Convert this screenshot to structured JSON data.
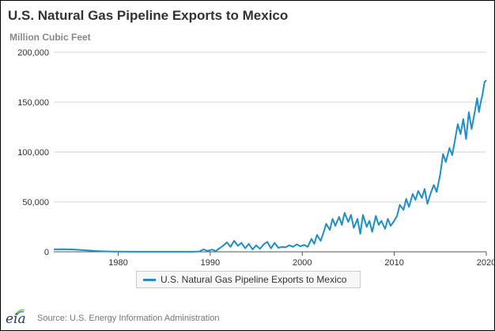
{
  "title": "U.S. Natural Gas Pipeline Exports to Mexico",
  "subtitle": "Million Cubic Feet",
  "source": "Source: U.S. Energy Information Administration",
  "logo_text": "eia",
  "colors": {
    "series": "#1f8fc8",
    "grid": "#d4d4d4",
    "axis": "#555555",
    "text": "#333333"
  },
  "chart_data": {
    "type": "line",
    "title": "U.S. Natural Gas Pipeline Exports to Mexico",
    "subtitle": "Million Cubic Feet",
    "xlabel": "",
    "ylabel": "",
    "xlim": [
      1973,
      2020
    ],
    "ylim": [
      0,
      200000
    ],
    "x_ticks": [
      "1980",
      "1990",
      "2000",
      "2010",
      "2020"
    ],
    "y_ticks": [
      "0",
      "50,000",
      "100,000",
      "150,000",
      "200,000"
    ],
    "grid": "horizontal",
    "legend_position": "bottom-center",
    "series": [
      {
        "name": "U.S. Natural Gas Pipeline Exports to Mexico",
        "points": [
          [
            1973.0,
            2500
          ],
          [
            1974.0,
            2600
          ],
          [
            1975.0,
            2400
          ],
          [
            1976.0,
            1800
          ],
          [
            1977.0,
            1200
          ],
          [
            1978.0,
            600
          ],
          [
            1979.0,
            300
          ],
          [
            1980.0,
            150
          ],
          [
            1982.0,
            100
          ],
          [
            1985.0,
            100
          ],
          [
            1988.0,
            100
          ],
          [
            1988.8,
            300
          ],
          [
            1989.3,
            2500
          ],
          [
            1989.7,
            900
          ],
          [
            1990.2,
            2200
          ],
          [
            1990.6,
            700
          ],
          [
            1991.0,
            3500
          ],
          [
            1991.4,
            6000
          ],
          [
            1991.8,
            9500
          ],
          [
            1992.2,
            5000
          ],
          [
            1992.6,
            11000
          ],
          [
            1993.0,
            6000
          ],
          [
            1993.4,
            9000
          ],
          [
            1993.8,
            3500
          ],
          [
            1994.2,
            8000
          ],
          [
            1994.6,
            2500
          ],
          [
            1995.0,
            6500
          ],
          [
            1995.4,
            3000
          ],
          [
            1995.8,
            7500
          ],
          [
            1996.2,
            10000
          ],
          [
            1996.6,
            3500
          ],
          [
            1997.0,
            9000
          ],
          [
            1997.4,
            4000
          ],
          [
            1997.8,
            5000
          ],
          [
            1998.2,
            4500
          ],
          [
            1998.6,
            6500
          ],
          [
            1999.0,
            5000
          ],
          [
            1999.4,
            7500
          ],
          [
            1999.8,
            5500
          ],
          [
            2000.2,
            7000
          ],
          [
            2000.6,
            5000
          ],
          [
            2001.0,
            13000
          ],
          [
            2001.3,
            8000
          ],
          [
            2001.6,
            17000
          ],
          [
            2002.0,
            11000
          ],
          [
            2002.3,
            19000
          ],
          [
            2002.6,
            28000
          ],
          [
            2003.0,
            22000
          ],
          [
            2003.3,
            33000
          ],
          [
            2003.6,
            26000
          ],
          [
            2004.0,
            35000
          ],
          [
            2004.3,
            27000
          ],
          [
            2004.6,
            39000
          ],
          [
            2005.0,
            30000
          ],
          [
            2005.3,
            37000
          ],
          [
            2005.6,
            24000
          ],
          [
            2006.0,
            33000
          ],
          [
            2006.3,
            18000
          ],
          [
            2006.6,
            37000
          ],
          [
            2007.0,
            25000
          ],
          [
            2007.3,
            31000
          ],
          [
            2007.6,
            20000
          ],
          [
            2008.0,
            36000
          ],
          [
            2008.3,
            27000
          ],
          [
            2008.6,
            31000
          ],
          [
            2009.0,
            23000
          ],
          [
            2009.3,
            33000
          ],
          [
            2009.6,
            26000
          ],
          [
            2010.0,
            31000
          ],
          [
            2010.3,
            36000
          ],
          [
            2010.6,
            47000
          ],
          [
            2011.0,
            42000
          ],
          [
            2011.3,
            53000
          ],
          [
            2011.6,
            45000
          ],
          [
            2012.0,
            58000
          ],
          [
            2012.3,
            52000
          ],
          [
            2012.6,
            61000
          ],
          [
            2013.0,
            54000
          ],
          [
            2013.3,
            63000
          ],
          [
            2013.6,
            48000
          ],
          [
            2014.0,
            60000
          ],
          [
            2014.3,
            67000
          ],
          [
            2014.6,
            60000
          ],
          [
            2015.0,
            78000
          ],
          [
            2015.3,
            98000
          ],
          [
            2015.6,
            90000
          ],
          [
            2016.0,
            104000
          ],
          [
            2016.3,
            97000
          ],
          [
            2016.6,
            112000
          ],
          [
            2016.9,
            128000
          ],
          [
            2017.2,
            118000
          ],
          [
            2017.5,
            133000
          ],
          [
            2017.8,
            113000
          ],
          [
            2018.1,
            140000
          ],
          [
            2018.4,
            123000
          ],
          [
            2018.7,
            138000
          ],
          [
            2019.0,
            154000
          ],
          [
            2019.2,
            140000
          ],
          [
            2019.4,
            150000
          ],
          [
            2019.6,
            158000
          ],
          [
            2019.8,
            170000
          ],
          [
            2020.0,
            172000
          ]
        ]
      }
    ]
  }
}
